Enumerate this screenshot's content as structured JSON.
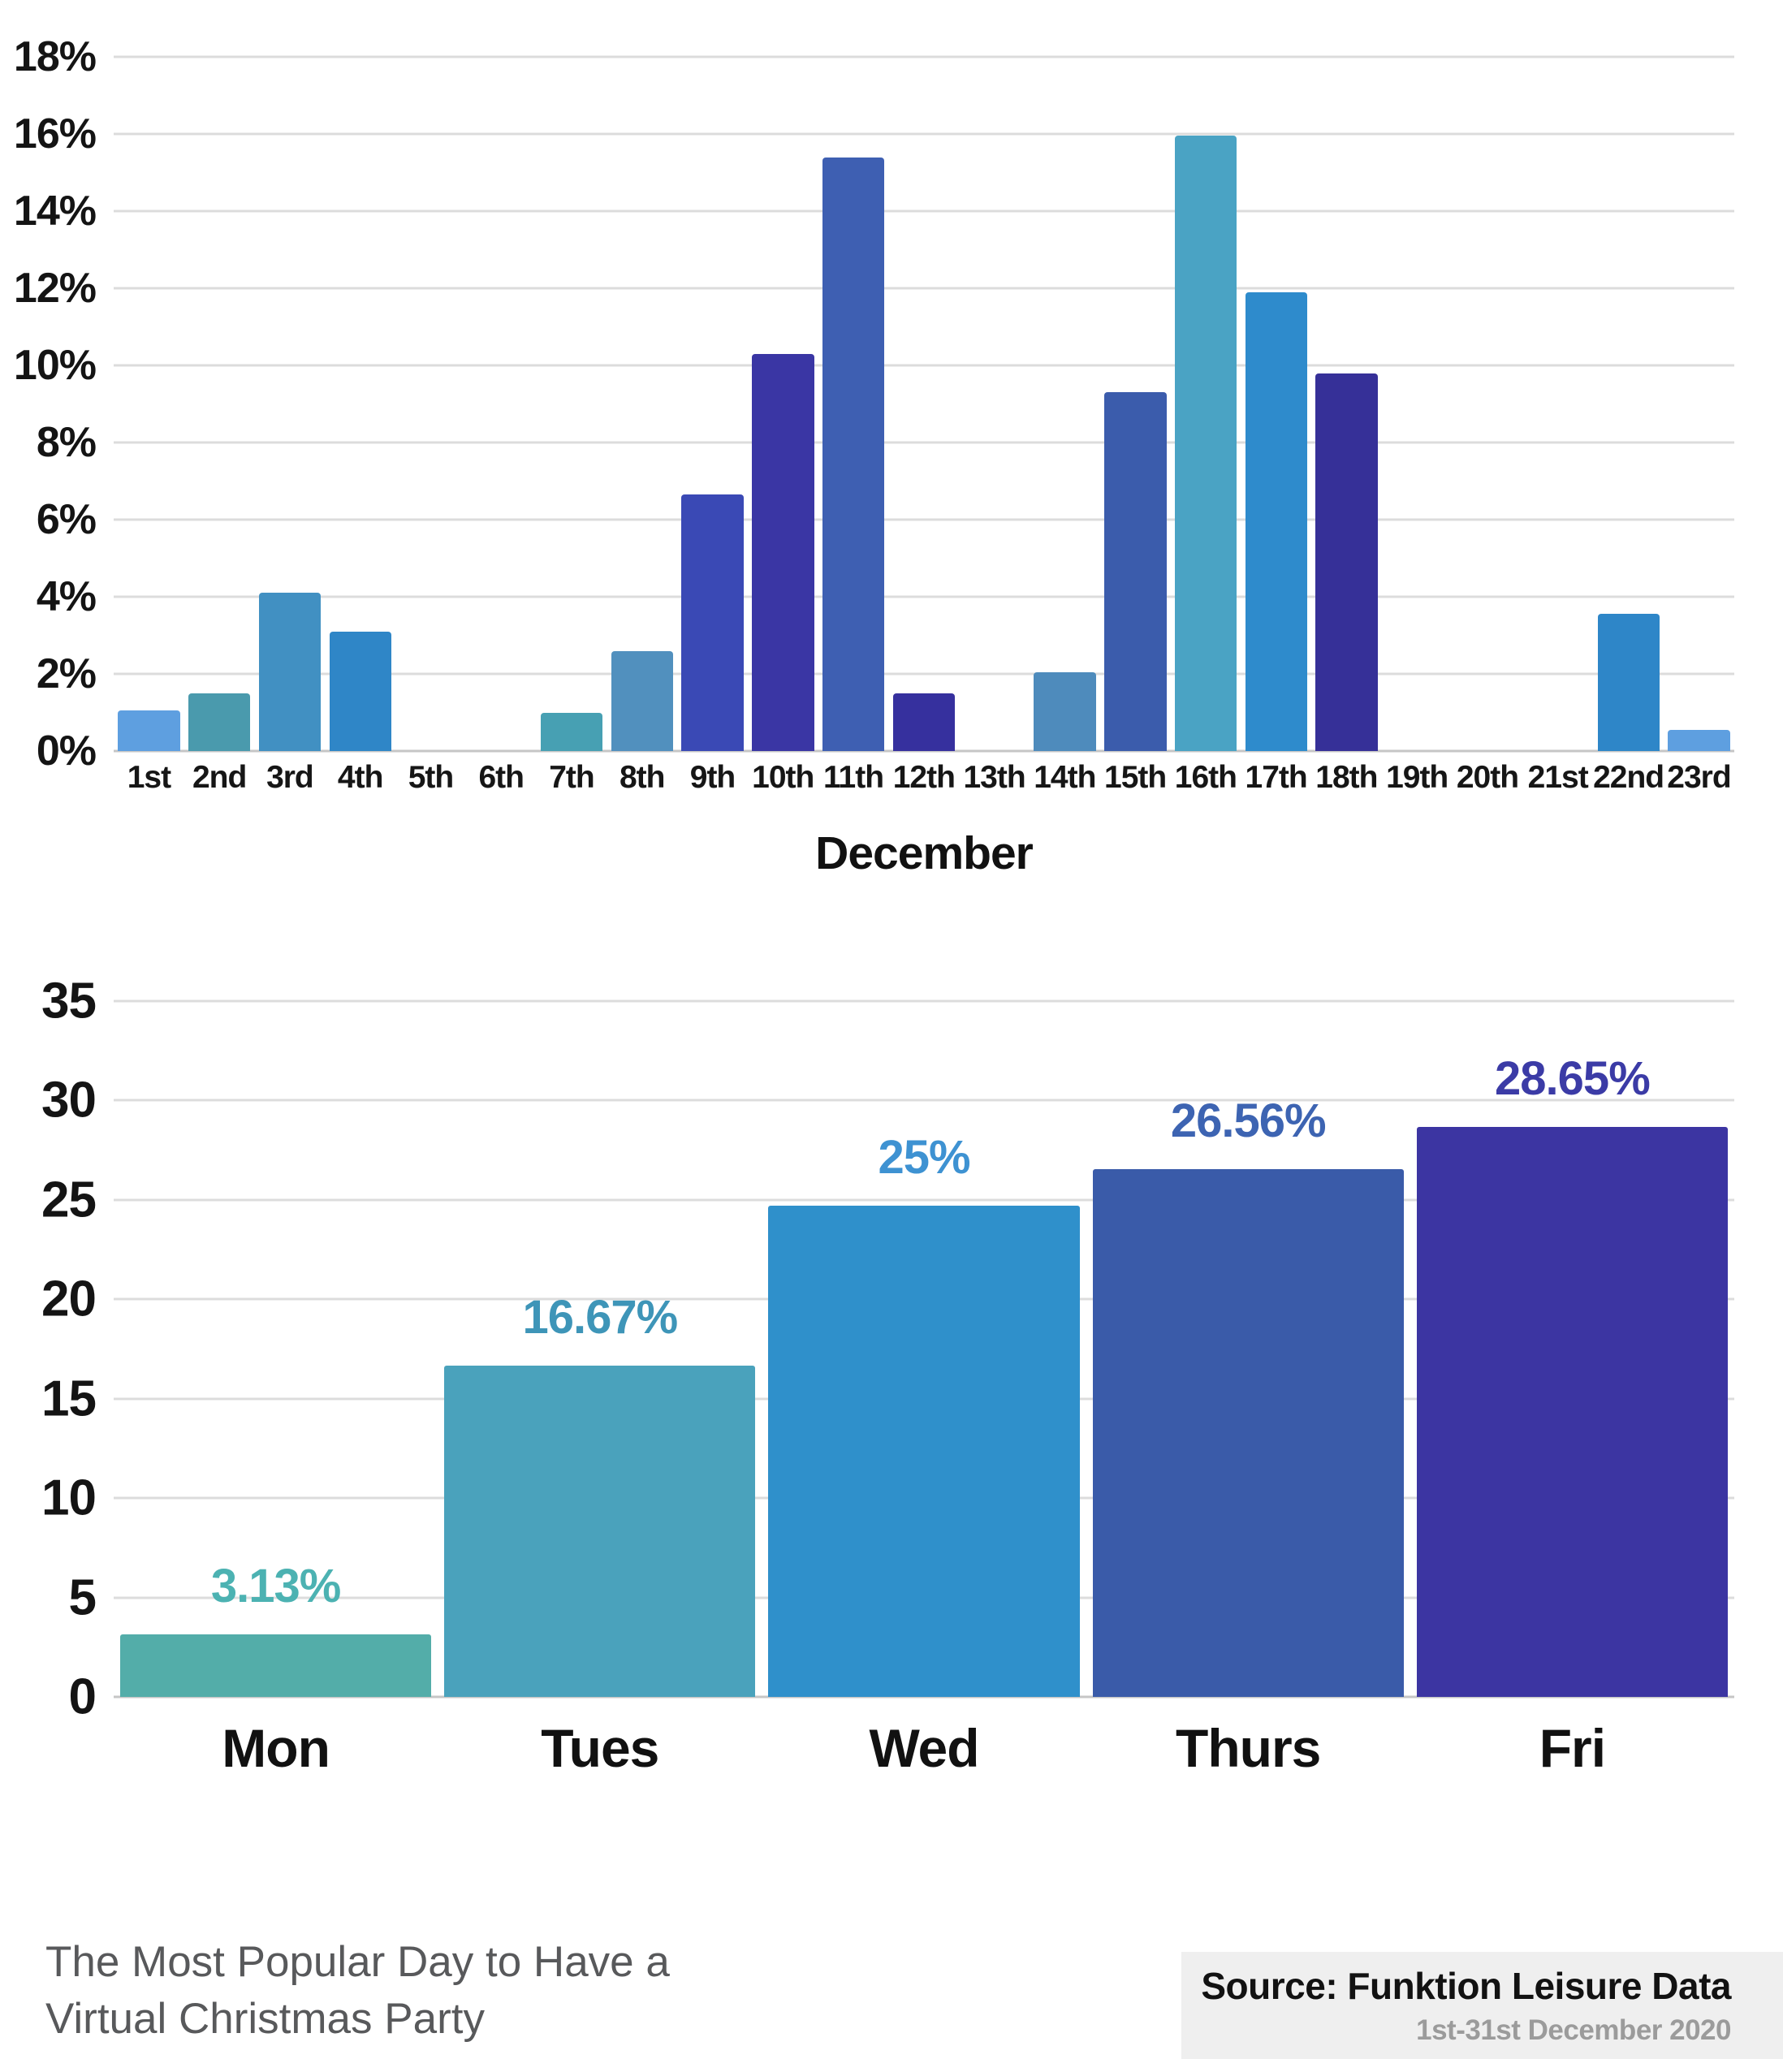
{
  "footer": {
    "caption_line1": "The Most Popular Day to Have a",
    "caption_line2": "Virtual Christmas Party",
    "source_label": "Source: Funktion Leisure Data",
    "source_period": "1st-31st December 2020"
  },
  "chart_data": [
    {
      "type": "bar",
      "title": "",
      "xlabel": "December",
      "ylabel": "",
      "unit": "%",
      "ylim": [
        0,
        18
      ],
      "axis_max": 18,
      "grid": true,
      "legend": false,
      "y_ticks": [
        "18%",
        "16%",
        "14%",
        "12%",
        "10%",
        "8%",
        "6%",
        "4%",
        "2%",
        "0%"
      ],
      "categories": [
        "1st",
        "2nd",
        "3rd",
        "4th",
        "5th",
        "6th",
        "7th",
        "8th",
        "9th",
        "10th",
        "11th",
        "12th",
        "13th",
        "14th",
        "15th",
        "16th",
        "17th",
        "18th",
        "19th",
        "20th",
        "21st",
        "22nd",
        "23rd"
      ],
      "values": [
        1.05,
        1.5,
        4.1,
        3.1,
        0,
        0,
        1.0,
        2.6,
        6.65,
        10.3,
        15.4,
        1.5,
        0,
        2.05,
        9.3,
        15.95,
        11.9,
        9.8,
        0,
        0,
        0,
        3.55,
        0.55
      ],
      "colors": [
        "#5E9FE0",
        "#4A9AAD",
        "#4190C2",
        "#2F86C7",
        null,
        null,
        "#47A0B3",
        "#5190BE",
        "#3A49B5",
        "#3A36A4",
        "#3E5FB2",
        "#36309E",
        null,
        "#4E8BBC",
        "#3B5CAC",
        "#4AA3C4",
        "#2E8BCC",
        "#363098",
        null,
        null,
        null,
        "#2E86C8",
        "#5E9FE0"
      ]
    },
    {
      "type": "bar",
      "title": "The Most Popular Day to Have a Virtual Christmas Party",
      "xlabel": "",
      "ylabel": "",
      "unit": "%",
      "ylim": [
        0,
        35
      ],
      "axis_max": 35,
      "grid": true,
      "legend": false,
      "y_ticks": [
        "35",
        "30",
        "25",
        "20",
        "15",
        "10",
        "5",
        "0"
      ],
      "categories": [
        "Mon",
        "Tues",
        "Wed",
        "Thurs",
        "Fri"
      ],
      "values": [
        3.13,
        16.67,
        25,
        26.56,
        28.65
      ],
      "bar_heights": [
        3.13,
        16.67,
        24.7,
        26.56,
        28.65
      ],
      "value_labels": [
        "3.13%",
        "16.67%",
        "25%",
        "26.56%",
        "28.65%"
      ],
      "value_label_colors": [
        "#4CB2B2",
        "#3E95B8",
        "#3E92D2",
        "#3D64B2",
        "#3B3BA6"
      ],
      "colors": [
        "#53ADA9",
        "#4AA2BC",
        "#2F90CB",
        "#3A5BA9",
        "#3C35A2"
      ]
    }
  ]
}
